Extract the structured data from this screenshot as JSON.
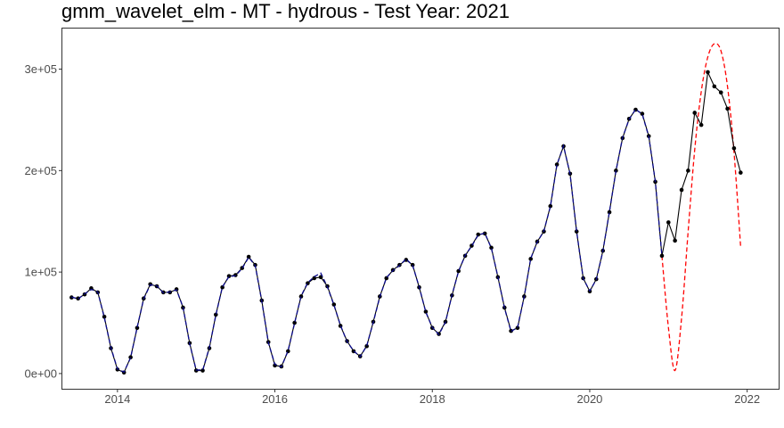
{
  "chart_data": {
    "type": "line",
    "title": "gmm_wavelet_elm - MT - hydrous - Test Year: 2021",
    "xlabel": "",
    "ylabel": "",
    "xlim": [
      2013.3,
      2022.4
    ],
    "ylim": [
      -15000,
      340000
    ],
    "x_ticks": [
      2014,
      2016,
      2018,
      2020,
      2022
    ],
    "x_tick_labels": [
      "2014",
      "2016",
      "2018",
      "2020",
      "2022"
    ],
    "y_ticks": [
      0,
      100000,
      200000,
      300000
    ],
    "y_tick_labels": [
      "0e+00",
      "1e+05",
      "2e+05",
      "3e+05"
    ],
    "grid": false,
    "series": [
      {
        "style": "solid-with-points",
        "color": "#000000",
        "x": [
          2013.417,
          2013.5,
          2013.583,
          2013.667,
          2013.75,
          2013.833,
          2013.917,
          2014.0,
          2014.083,
          2014.167,
          2014.25,
          2014.333,
          2014.417,
          2014.5,
          2014.583,
          2014.667,
          2014.75,
          2014.833,
          2014.917,
          2015.0,
          2015.083,
          2015.167,
          2015.25,
          2015.333,
          2015.417,
          2015.5,
          2015.583,
          2015.667,
          2015.75,
          2015.833,
          2015.917,
          2016.0,
          2016.083,
          2016.167,
          2016.25,
          2016.333,
          2016.417,
          2016.5,
          2016.583,
          2016.667,
          2016.75,
          2016.833,
          2016.917,
          2017.0,
          2017.083,
          2017.167,
          2017.25,
          2017.333,
          2017.417,
          2017.5,
          2017.583,
          2017.667,
          2017.75,
          2017.833,
          2017.917,
          2018.0,
          2018.083,
          2018.167,
          2018.25,
          2018.333,
          2018.417,
          2018.5,
          2018.583,
          2018.667,
          2018.75,
          2018.833,
          2018.917,
          2019.0,
          2019.083,
          2019.167,
          2019.25,
          2019.333,
          2019.417,
          2019.5,
          2019.583,
          2019.667,
          2019.75,
          2019.833,
          2019.917,
          2020.0,
          2020.083,
          2020.167,
          2020.25,
          2020.333,
          2020.417,
          2020.5,
          2020.583,
          2020.667,
          2020.75,
          2020.833,
          2020.917,
          2021.0,
          2021.083,
          2021.167,
          2021.25,
          2021.333,
          2021.417,
          2021.5,
          2021.583,
          2021.667,
          2021.75,
          2021.833,
          2021.917
        ],
        "values": [
          75000,
          74000,
          78000,
          84000,
          80000,
          56000,
          25000,
          4000,
          1000,
          16000,
          45000,
          74000,
          88000,
          86000,
          80000,
          80000,
          83000,
          65000,
          30000,
          3000,
          3000,
          25000,
          58000,
          85000,
          96000,
          97000,
          104000,
          115000,
          107000,
          72000,
          31000,
          8000,
          7000,
          22000,
          50000,
          76000,
          89000,
          94000,
          95000,
          86000,
          68000,
          47000,
          32000,
          22000,
          17000,
          27000,
          51000,
          76000,
          94000,
          102000,
          107000,
          112000,
          107000,
          85000,
          61000,
          45000,
          39000,
          51000,
          77000,
          101000,
          116000,
          126000,
          137000,
          138000,
          124000,
          95000,
          65000,
          42000,
          45000,
          76000,
          113000,
          130000,
          140000,
          165000,
          206000,
          224000,
          197000,
          140000,
          94000,
          81000,
          93000,
          121000,
          159000,
          200000,
          232000,
          251000,
          260000,
          256000,
          234000,
          189000,
          116000,
          149000,
          131000,
          181000,
          200000,
          257000,
          245000,
          297000,
          283000,
          277000,
          261000,
          222000,
          198000
        ]
      },
      {
        "style": "dashed",
        "color": "#0a0a8c",
        "x": [
          2013.417,
          2013.5,
          2013.583,
          2013.667,
          2013.75,
          2013.833,
          2013.917,
          2014.0,
          2014.083,
          2014.167,
          2014.25,
          2014.333,
          2014.417,
          2014.5,
          2014.583,
          2014.667,
          2014.75,
          2014.833,
          2014.917,
          2015.0,
          2015.083,
          2015.167,
          2015.25,
          2015.333,
          2015.417,
          2015.5,
          2015.583,
          2015.667,
          2015.75,
          2015.833,
          2015.917,
          2016.0,
          2016.083,
          2016.167,
          2016.25,
          2016.333,
          2016.417,
          2016.5,
          2016.583,
          2016.667,
          2016.75,
          2016.833,
          2016.917,
          2017.0,
          2017.083,
          2017.167,
          2017.25,
          2017.333,
          2017.417,
          2017.5,
          2017.583,
          2017.667,
          2017.75,
          2017.833,
          2017.917,
          2018.0,
          2018.083,
          2018.167,
          2018.25,
          2018.333,
          2018.417,
          2018.5,
          2018.583,
          2018.667,
          2018.75,
          2018.833,
          2018.917,
          2019.0,
          2019.083,
          2019.167,
          2019.25,
          2019.333,
          2019.417,
          2019.5,
          2019.583,
          2019.667,
          2019.75,
          2019.833,
          2019.917,
          2020.0,
          2020.083,
          2020.167,
          2020.25,
          2020.333,
          2020.417,
          2020.5,
          2020.583,
          2020.667,
          2020.75,
          2020.833,
          2020.917
        ],
        "values": [
          75500,
          73500,
          78500,
          83000,
          80500,
          55000,
          25500,
          4500,
          1500,
          15500,
          45500,
          73500,
          87500,
          86500,
          79500,
          80500,
          82500,
          65500,
          29500,
          3500,
          3500,
          25500,
          57500,
          85500,
          95500,
          96500,
          103500,
          114500,
          106500,
          71500,
          30500,
          9000,
          6500,
          22500,
          49500,
          76500,
          89500,
          95500,
          99000,
          85500,
          67500,
          47500,
          31500,
          22500,
          16500,
          27500,
          50500,
          75500,
          94500,
          101500,
          106500,
          113000,
          106500,
          85500,
          60500,
          45500,
          38500,
          50500,
          77500,
          100500,
          116500,
          125500,
          136500,
          138500,
          123500,
          95500,
          64500,
          41500,
          45500,
          75500,
          113500,
          129500,
          140500,
          164500,
          205500,
          224500,
          196500,
          140500,
          93500,
          81500,
          92500,
          120500,
          159500,
          199500,
          232500,
          250500,
          260500,
          255500,
          233500,
          189500,
          116000
        ]
      },
      {
        "style": "dashed",
        "color": "#ff0000",
        "x": [
          2020.917,
          2021.0,
          2021.083,
          2021.167,
          2021.25,
          2021.333,
          2021.417,
          2021.5,
          2021.583,
          2021.667,
          2021.75,
          2021.833,
          2021.917
        ],
        "values": [
          116000,
          45000,
          3000,
          55000,
          140000,
          220000,
          278000,
          312000,
          325000,
          318000,
          283000,
          218000,
          125000
        ]
      }
    ]
  }
}
